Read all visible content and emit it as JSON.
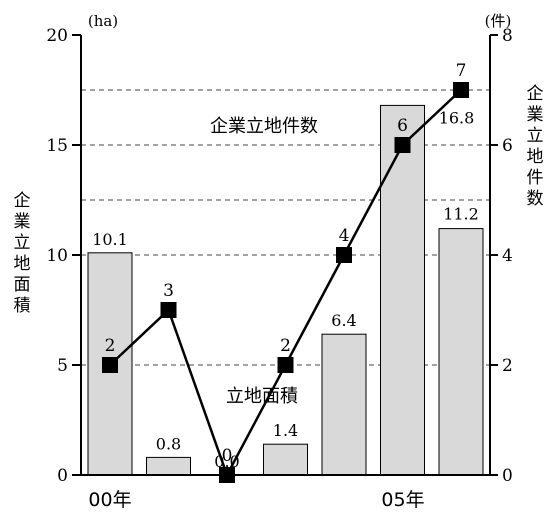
{
  "chart_data": {
    "type": "bar+line",
    "categories": [
      "00年",
      "",
      "",
      "",
      "",
      "05年",
      ""
    ],
    "bar_series": {
      "name": "立地面積",
      "values": [
        10.1,
        0.8,
        0.0,
        1.4,
        6.4,
        16.8,
        11.2
      ],
      "labels": [
        "10.1",
        "0.8",
        "0.0",
        "1.4",
        "6.4",
        "16.8",
        "11.2"
      ],
      "color": "#d9d9d9",
      "axis": "left"
    },
    "line_series": {
      "name": "企業立地件数",
      "values": [
        2,
        3,
        0,
        2,
        4,
        6,
        7
      ],
      "labels": [
        "2",
        "3",
        "0",
        "2",
        "4",
        "6",
        "7"
      ],
      "color": "#000000",
      "axis": "right"
    },
    "left_axis": {
      "label": "企業立地面積",
      "unit": "(ha)",
      "range": [
        0,
        20
      ],
      "ticks": [
        "0",
        "5",
        "10",
        "15",
        "20"
      ]
    },
    "right_axis": {
      "label": "企業立地件数",
      "unit": "(件)",
      "range": [
        0,
        8
      ],
      "ticks": [
        "0",
        "2",
        "4",
        "6",
        "8"
      ]
    },
    "x_tick_labels": [
      "00年",
      "05年"
    ],
    "gridlines": "dashed at left-axis values 5, 10, 12.5, 15, 17.5"
  }
}
